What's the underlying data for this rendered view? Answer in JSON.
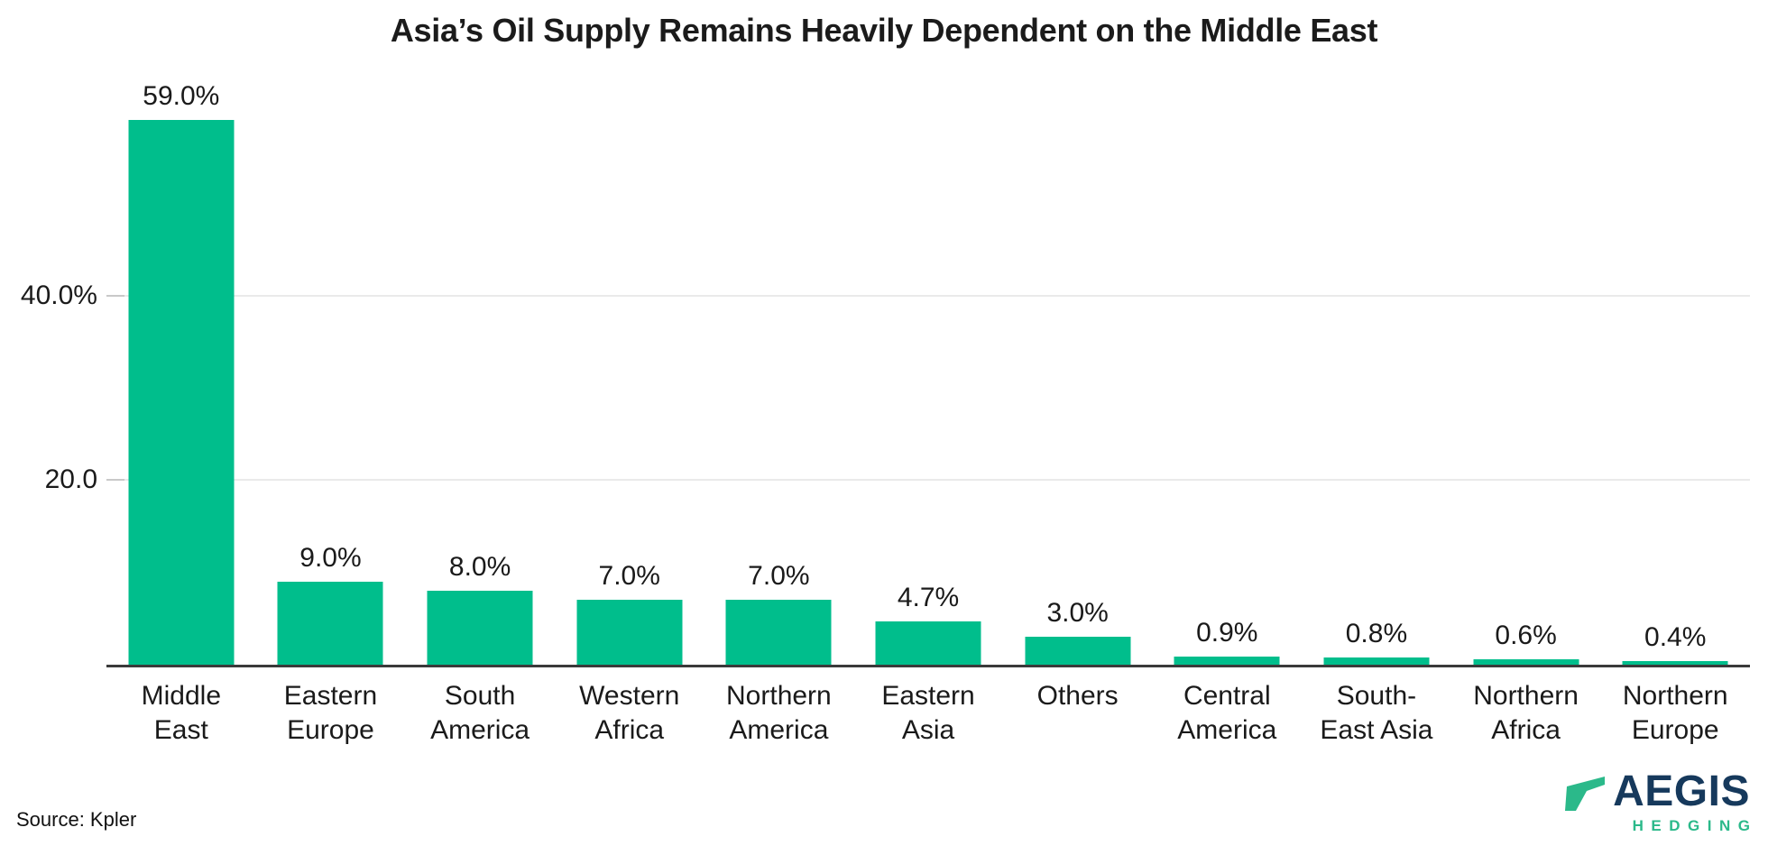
{
  "chart_data": {
    "type": "bar",
    "title": "Asia’s Oil Supply Remains Heavily Dependent on the Middle East",
    "categories": [
      "Middle\nEast",
      "Eastern\nEurope",
      "South\nAmerica",
      "Western\nAfrica",
      "Northern\nAmerica",
      "Eastern\nAsia",
      "Others",
      "Central\nAmerica",
      "South-\nEast Asia",
      "Northern\nAfrica",
      "Northern\nEurope"
    ],
    "values": [
      59.0,
      9.0,
      8.0,
      7.0,
      7.0,
      4.7,
      3.0,
      0.9,
      0.8,
      0.6,
      0.4
    ],
    "value_labels": [
      "59.0%",
      "9.0%",
      "8.0%",
      "7.0%",
      "7.0%",
      "4.7%",
      "3.0%",
      "0.9%",
      "0.8%",
      "0.6%",
      "0.4%"
    ],
    "xlabel": "",
    "ylabel": "",
    "ylim": [
      0,
      60
    ],
    "y_ticks": [
      {
        "value": 20.0,
        "label": "20.0"
      },
      {
        "value": 40.0,
        "label": "40.0%"
      }
    ],
    "grid": true,
    "legend": "none",
    "bar_color": "#00be8c",
    "grid_color": "#eaeaea",
    "axis_line_color": "#3a3a3a"
  },
  "footer": {
    "source_label": "Source: Kpler"
  },
  "logo": {
    "brand": "AEGIS",
    "tagline": "HEDGING",
    "brand_color": "#16395c",
    "accent_color": "#2bb98a"
  }
}
